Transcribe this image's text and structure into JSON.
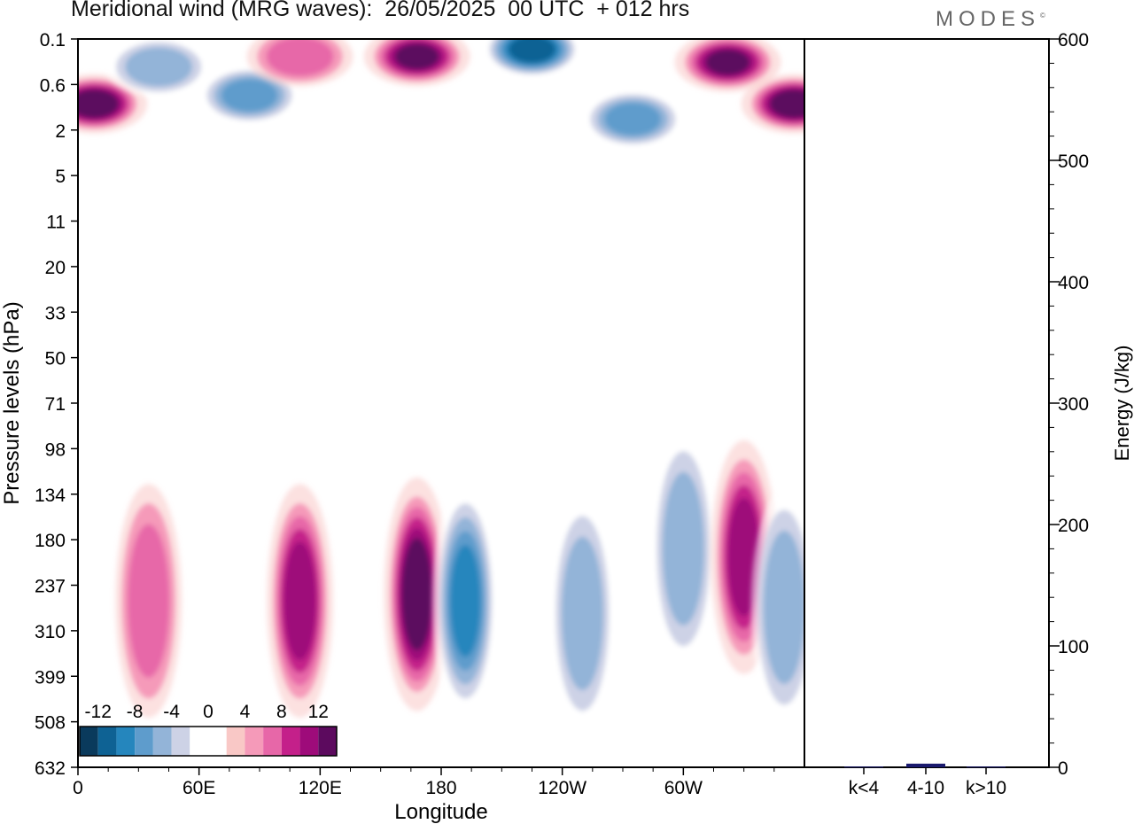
{
  "header": {
    "title": "Meridional wind (MRG waves):  26/05/2025  00 UTC  + 012 hrs",
    "logo": "MODES",
    "logo_mark": "©"
  },
  "chart_data": [
    {
      "type": "heatmap",
      "title": "Meridional wind (MRG waves):  26/05/2025  00 UTC  + 012 hrs",
      "xlabel": "Longitude",
      "ylabel": "Pressure levels (hPa)",
      "x_ticks": [
        "0",
        "60E",
        "120E",
        "180",
        "120W",
        "60W"
      ],
      "x_tick_degrees": [
        0,
        60,
        120,
        180,
        240,
        300
      ],
      "xlim": [
        0,
        360
      ],
      "y_levels": [
        "0.1",
        "0.6",
        "2",
        "5",
        "11",
        "20",
        "33",
        "50",
        "71",
        "98",
        "134",
        "180",
        "237",
        "310",
        "399",
        "508",
        "632"
      ],
      "y_direction": "pressure decreasing upward (top = 0.1 hPa)",
      "colorbar": {
        "labels": [
          "-12",
          "-8",
          "-4",
          "0",
          "4",
          "8",
          "12"
        ],
        "position": "bottom-left",
        "colors": [
          "#0a3a5c",
          "#0e6294",
          "#2586bd",
          "#5e9ccc",
          "#93b4d8",
          "#cdd2e6",
          "#ffffff",
          "#ffffff",
          "#f9c8c6",
          "#f59ab9",
          "#e767a8",
          "#c4208a",
          "#9e0b7a",
          "#5c0a5e"
        ]
      },
      "features": [
        {
          "lon": 8,
          "level": "1",
          "value": 14
        },
        {
          "lon": 40,
          "level": "0.3",
          "value": -6
        },
        {
          "lon": 85,
          "level": "0.8",
          "value": -8
        },
        {
          "lon": 110,
          "level": "0.2",
          "value": 6
        },
        {
          "lon": 168,
          "level": "0.2",
          "value": 12
        },
        {
          "lon": 225,
          "level": "0.15",
          "value": -13
        },
        {
          "lon": 322,
          "level": "0.25",
          "value": 12
        },
        {
          "lon": 355,
          "level": "1",
          "value": 14
        },
        {
          "lon": 275,
          "level": "1.5",
          "value": -8
        },
        {
          "lon": 35,
          "level": "260",
          "value": 6
        },
        {
          "lon": 110,
          "level": "260",
          "value": 11
        },
        {
          "lon": 168,
          "level": "250",
          "value": 14
        },
        {
          "lon": 192,
          "level": "260",
          "value": -10
        },
        {
          "lon": 250,
          "level": "280",
          "value": -6
        },
        {
          "lon": 300,
          "level": "190",
          "value": -6
        },
        {
          "lon": 330,
          "level": "200",
          "value": 11
        },
        {
          "lon": 350,
          "level": "270",
          "value": -6
        }
      ]
    },
    {
      "type": "bar",
      "ylabel": "Energy (J/kg)",
      "categories": [
        "k<4",
        "4-10",
        "k>10"
      ],
      "values": [
        0.6,
        3,
        0.6
      ],
      "ylim": [
        0,
        600
      ],
      "y_ticks": [
        "0",
        "100",
        "200",
        "300",
        "400",
        "500",
        "600"
      ],
      "bar_color": "#1a1a6e"
    }
  ]
}
